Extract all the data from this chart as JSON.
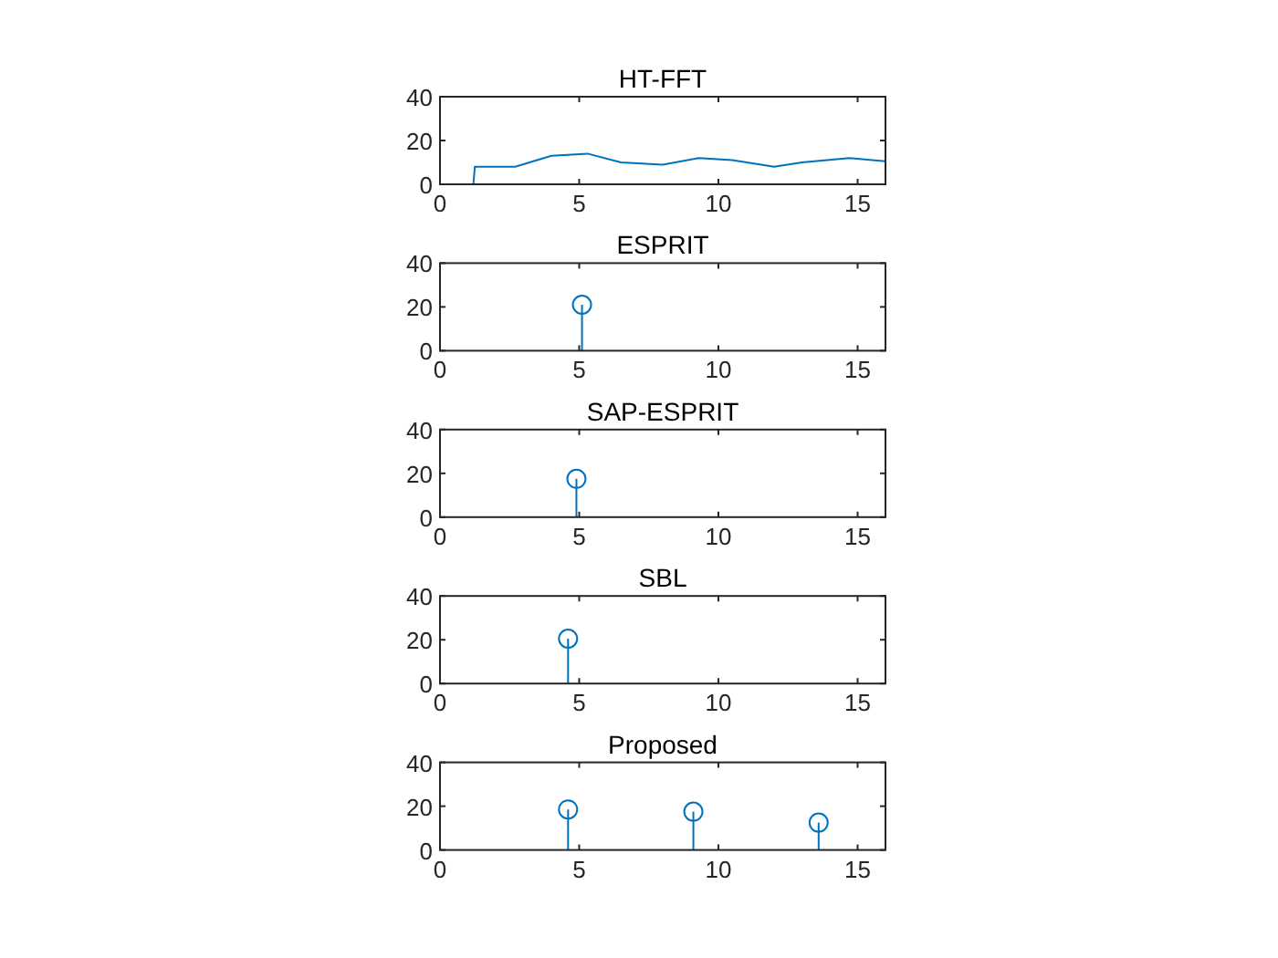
{
  "chart_data": [
    {
      "type": "line",
      "title": "HT-FFT",
      "x": [
        1.2,
        1.25,
        2.7,
        4,
        5.3,
        6.5,
        8,
        9.3,
        10.5,
        12,
        13,
        14.7,
        16
      ],
      "series": [
        {
          "color": "#0072bd",
          "values": [
            0,
            8,
            8,
            13,
            14,
            10,
            9,
            12,
            11,
            8,
            10,
            12,
            10.5
          ]
        }
      ],
      "xlim": [
        0,
        16
      ],
      "ylim": [
        0,
        40
      ],
      "xticks": [
        0,
        5,
        10,
        15
      ],
      "yticks": [
        0,
        20,
        40
      ]
    },
    {
      "type": "lollipop",
      "title": "ESPRIT",
      "x": [
        5.1
      ],
      "series": [
        {
          "color": "#0072bd",
          "values": [
            21
          ]
        }
      ],
      "marker": "circle",
      "xlim": [
        0,
        16
      ],
      "ylim": [
        0,
        40
      ],
      "xticks": [
        0,
        5,
        10,
        15
      ],
      "yticks": [
        0,
        20,
        40
      ]
    },
    {
      "type": "lollipop",
      "title": "SAP-ESPRIT",
      "x": [
        4.9
      ],
      "series": [
        {
          "color": "#0072bd",
          "values": [
            17.5
          ]
        }
      ],
      "marker": "circle",
      "xlim": [
        0,
        16
      ],
      "ylim": [
        0,
        40
      ],
      "xticks": [
        0,
        5,
        10,
        15
      ],
      "yticks": [
        0,
        20,
        40
      ]
    },
    {
      "type": "lollipop",
      "title": "SBL",
      "x": [
        4.6
      ],
      "series": [
        {
          "color": "#0072bd",
          "values": [
            20.5
          ]
        }
      ],
      "marker": "circle",
      "xlim": [
        0,
        16
      ],
      "ylim": [
        0,
        40
      ],
      "xticks": [
        0,
        5,
        10,
        15
      ],
      "yticks": [
        0,
        20,
        40
      ]
    },
    {
      "type": "lollipop",
      "title": "Proposed",
      "x": [
        4.6,
        9.1,
        13.6
      ],
      "series": [
        {
          "color": "#0072bd",
          "values": [
            18.5,
            17.5,
            12.5
          ]
        }
      ],
      "marker": "circle",
      "xlim": [
        0,
        16
      ],
      "ylim": [
        0,
        40
      ],
      "xticks": [
        0,
        5,
        10,
        15
      ],
      "yticks": [
        0,
        20,
        40
      ]
    }
  ]
}
